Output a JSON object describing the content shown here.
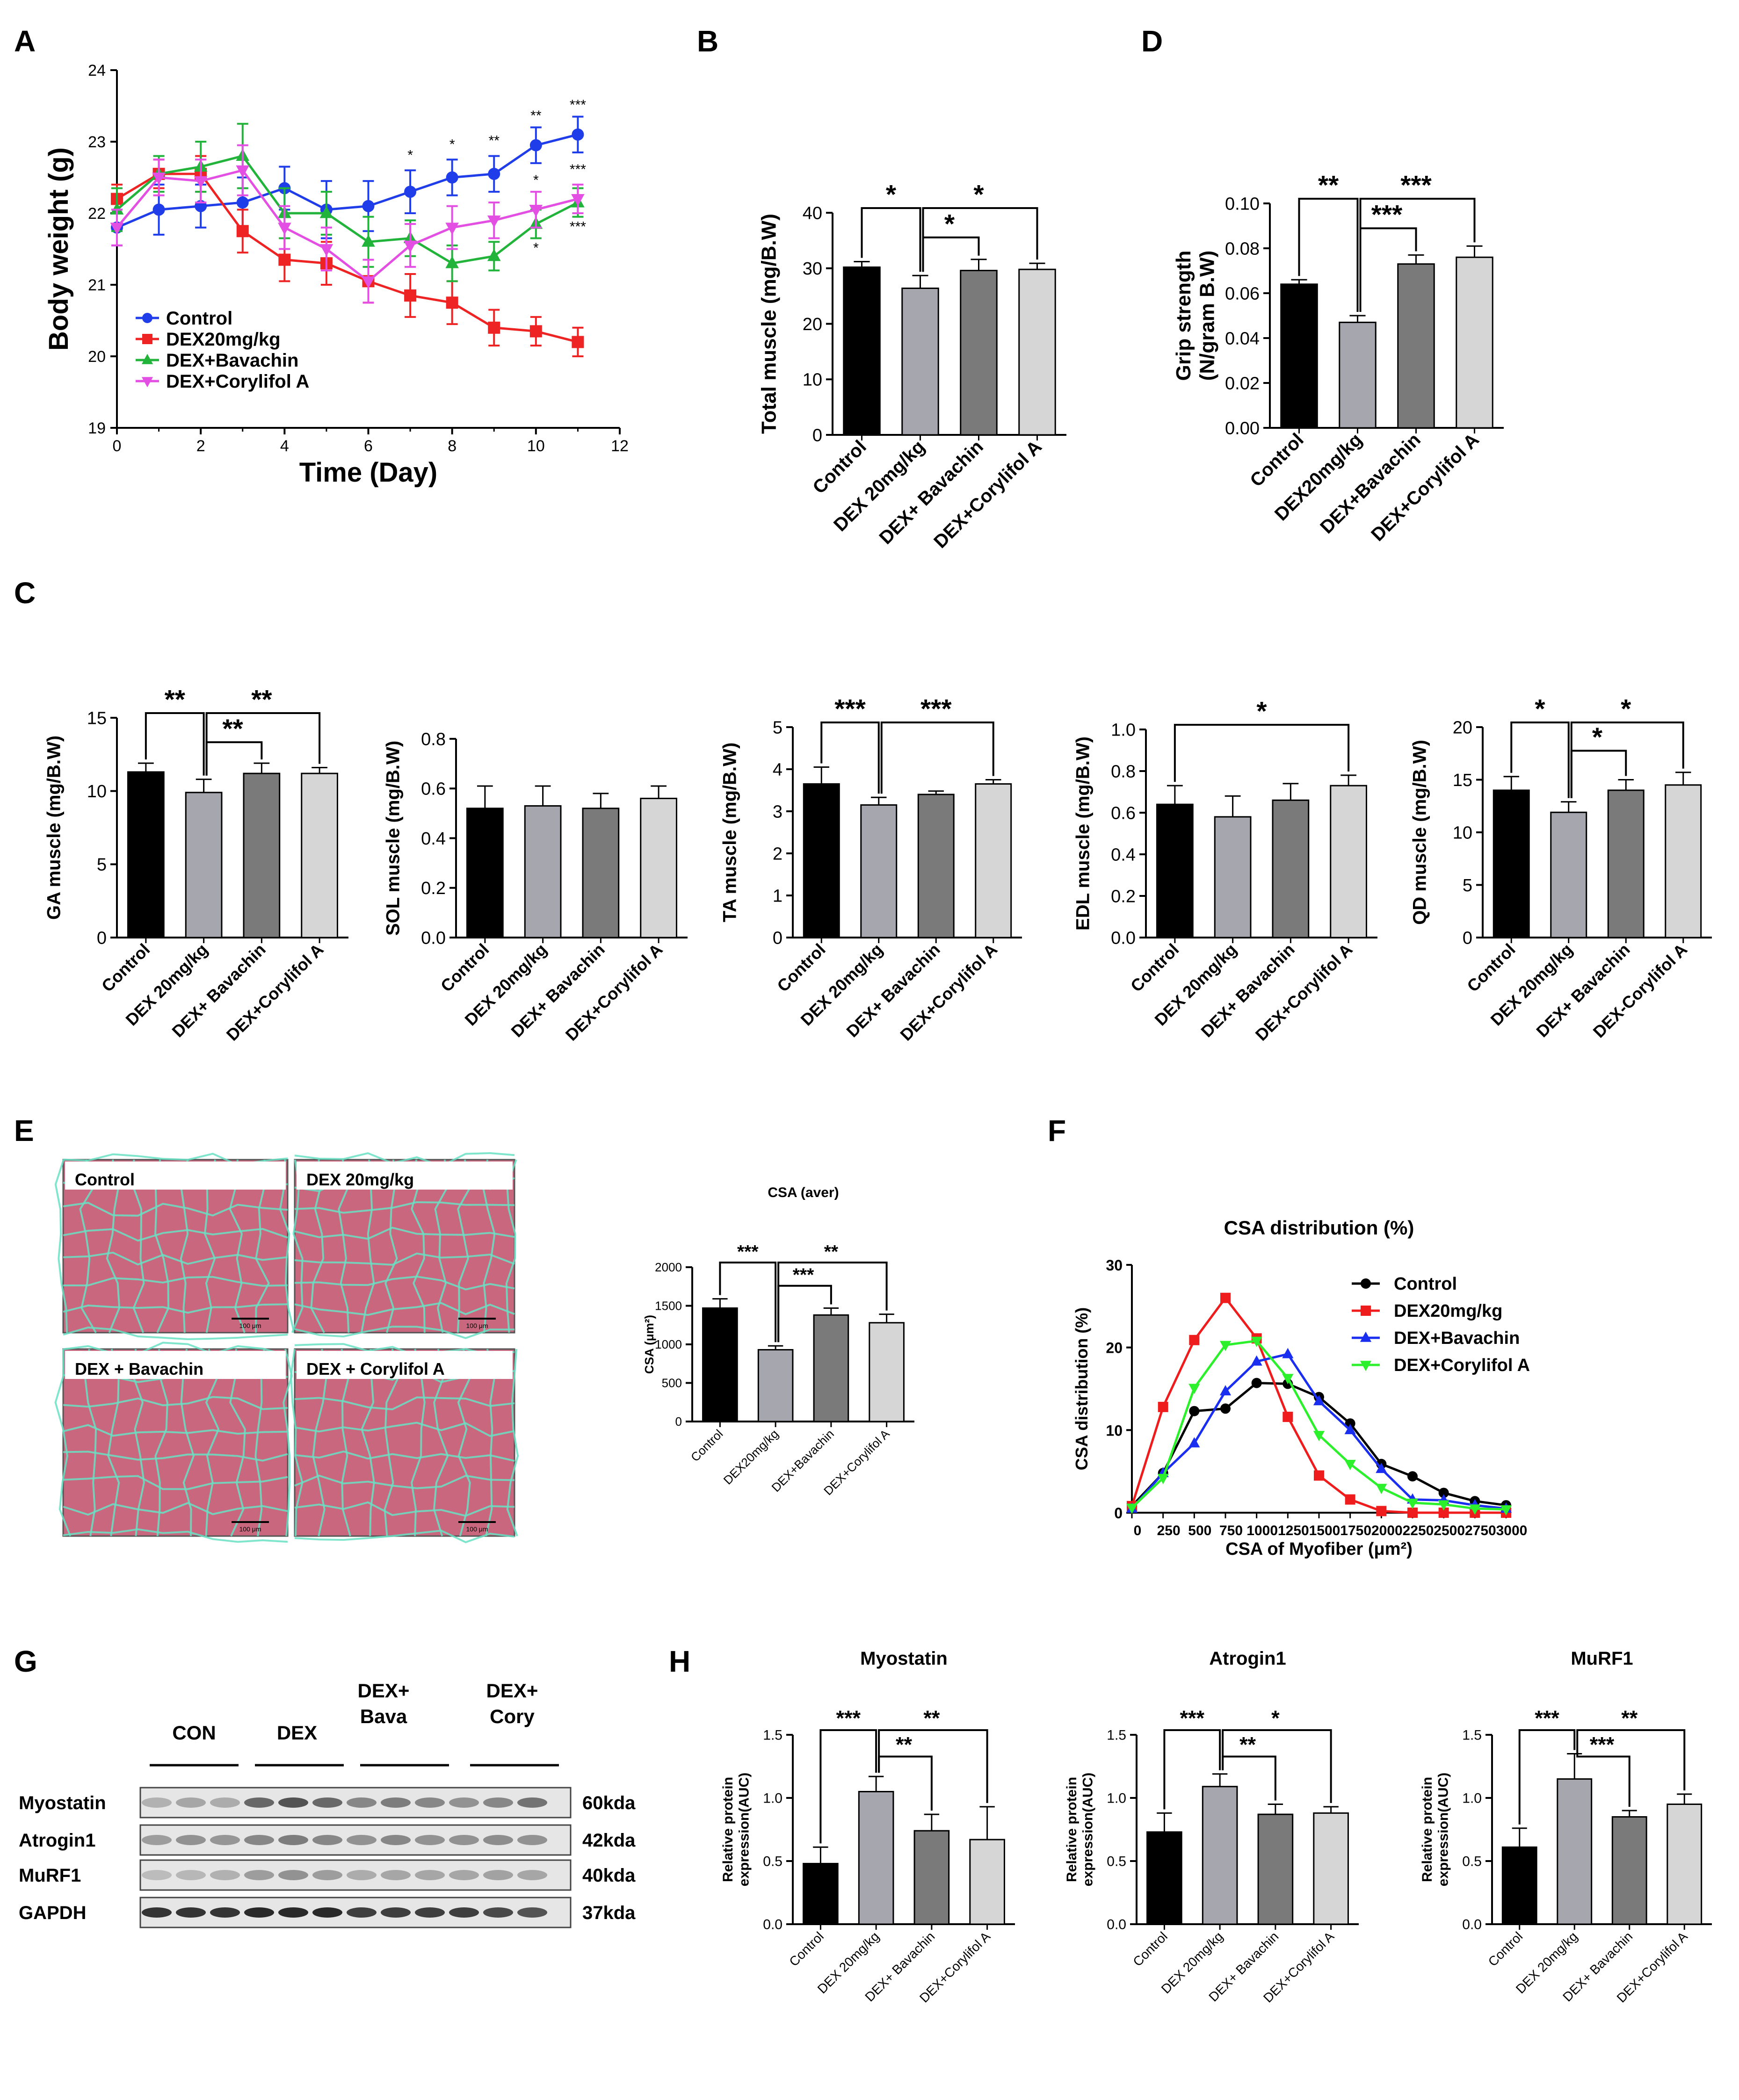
{
  "panel_letters": [
    "A",
    "B",
    "D",
    "C",
    "E",
    "F",
    "G",
    "H"
  ],
  "colors": {
    "black": "#000000",
    "grey1": "#a6a6ae",
    "grey2": "#7a7a7a",
    "grey3": "#d6d6d6",
    "control": "#1f3de8",
    "dex": "#ee2424",
    "bavachin": "#22b33a",
    "corylifol": "#e34ee3",
    "csa_control": "#000000",
    "csa_dex": "#ee1c1c",
    "csa_bava": "#1a2ef0",
    "csa_cory": "#2cf02c",
    "tissue": "#c8677e",
    "membrane": "#69e0c3"
  },
  "chart_data": [
    {
      "id": "A",
      "type": "line",
      "ylabel": "Body weight (g)",
      "xlabel": "Time (Day)",
      "xlim": [
        0,
        12
      ],
      "ylim": [
        19,
        24
      ],
      "xticks": [
        "0",
        "2",
        "4",
        "6",
        "8",
        "10",
        "12"
      ],
      "yticks": [
        "19",
        "20",
        "21",
        "22",
        "23",
        "24"
      ],
      "x": [
        0,
        1,
        2,
        3,
        4,
        5,
        6,
        7,
        8,
        9,
        10,
        11
      ],
      "series": [
        {
          "name": "Control",
          "color": "#1f3de8",
          "marker": "circle",
          "values": [
            21.8,
            22.05,
            22.1,
            22.15,
            22.35,
            22.05,
            22.1,
            22.3,
            22.5,
            22.55,
            22.95,
            23.1
          ],
          "err": [
            0.25,
            0.35,
            0.3,
            0.35,
            0.3,
            0.4,
            0.35,
            0.3,
            0.25,
            0.25,
            0.25,
            0.25
          ]
        },
        {
          "name": "DEX20mg/kg",
          "color": "#ee2424",
          "marker": "square",
          "values": [
            22.2,
            22.55,
            22.55,
            21.75,
            21.35,
            21.3,
            21.05,
            20.85,
            20.75,
            20.4,
            20.35,
            20.2
          ],
          "err": [
            0.2,
            0.2,
            0.25,
            0.3,
            0.3,
            0.3,
            0.3,
            0.3,
            0.3,
            0.25,
            0.2,
            0.2
          ]
        },
        {
          "name": "DEX+Bavachin",
          "color": "#22b33a",
          "marker": "triangle",
          "values": [
            22.05,
            22.55,
            22.65,
            22.8,
            22.0,
            22.0,
            21.6,
            21.65,
            21.3,
            21.4,
            21.85,
            22.15
          ],
          "err": [
            0.3,
            0.25,
            0.35,
            0.45,
            0.35,
            0.3,
            0.35,
            0.25,
            0.25,
            0.2,
            0.2,
            0.2
          ]
        },
        {
          "name": "DEX+Corylifol A",
          "color": "#e34ee3",
          "marker": "triangle-down",
          "values": [
            21.8,
            22.5,
            22.45,
            22.6,
            21.8,
            21.5,
            21.05,
            21.55,
            21.8,
            21.9,
            22.05,
            22.2
          ],
          "err": [
            0.25,
            0.25,
            0.3,
            0.35,
            0.3,
            0.3,
            0.3,
            0.3,
            0.3,
            0.25,
            0.25,
            0.2
          ]
        }
      ],
      "annotations": [
        {
          "x": 7,
          "y": 22.75,
          "text": "*"
        },
        {
          "x": 8,
          "y": 22.9,
          "text": "*"
        },
        {
          "x": 9,
          "y": 22.95,
          "text": "**"
        },
        {
          "x": 10,
          "y": 23.3,
          "text": "**"
        },
        {
          "x": 11,
          "y": 23.45,
          "text": "***"
        },
        {
          "x": 10,
          "y": 22.4,
          "text": "*"
        },
        {
          "x": 11,
          "y": 22.55,
          "text": "***"
        },
        {
          "x": 10,
          "y": 21.45,
          "text": "*"
        },
        {
          "x": 11,
          "y": 21.75,
          "text": "***"
        }
      ]
    },
    {
      "id": "B",
      "type": "bar",
      "ylabel": "Total muscle (mg/B.W)",
      "categories": [
        "Control",
        "DEX 20mg/kg",
        "DEX+ Bavachin",
        "DEX+Corylifol A"
      ],
      "values": [
        30.2,
        26.4,
        29.6,
        29.8
      ],
      "err": [
        1.0,
        2.3,
        2.0,
        1.1
      ],
      "ylim": [
        0,
        40
      ],
      "yticks": [
        "0",
        "10",
        "20",
        "30",
        "40"
      ],
      "brackets": [
        {
          "from": 0,
          "to": 1,
          "text": "*"
        },
        {
          "from": 1,
          "to": 3,
          "text": "*"
        },
        {
          "from": 1,
          "to": 2,
          "text": "*"
        }
      ]
    },
    {
      "id": "D",
      "type": "bar",
      "ylabel": "Grip strength",
      "ylabel2": "(N/gram B.W)",
      "categories": [
        "Control",
        "DEX20mg/kg",
        "DEX+Bavachin",
        "DEX+Corylifol A"
      ],
      "values": [
        0.064,
        0.047,
        0.073,
        0.076
      ],
      "err": [
        0.002,
        0.003,
        0.004,
        0.005
      ],
      "ylim": [
        0,
        0.1
      ],
      "yticks": [
        "0.00",
        "0.02",
        "0.04",
        "0.06",
        "0.08",
        "0.10"
      ],
      "brackets": [
        {
          "from": 0,
          "to": 1,
          "text": "**"
        },
        {
          "from": 1,
          "to": 3,
          "text": "***"
        },
        {
          "from": 1,
          "to": 2,
          "text": "***"
        }
      ]
    },
    {
      "id": "C1",
      "type": "bar",
      "ylabel": "GA muscle (mg/B.W)",
      "categories": [
        "Control",
        "DEX 20mg/kg",
        "DEX+ Bavachin",
        "DEX+Corylifol A"
      ],
      "values": [
        11.3,
        9.9,
        11.2,
        11.2
      ],
      "err": [
        0.6,
        0.9,
        0.7,
        0.4
      ],
      "ylim": [
        0,
        15
      ],
      "yticks": [
        "0",
        "5",
        "10",
        "15"
      ],
      "brackets": [
        {
          "from": 0,
          "to": 1,
          "text": "**"
        },
        {
          "from": 1,
          "to": 3,
          "text": "**"
        },
        {
          "from": 1,
          "to": 2,
          "text": "**"
        }
      ]
    },
    {
      "id": "C2",
      "type": "bar",
      "ylabel": "SOL muscle (mg/B.W)",
      "categories": [
        "Control",
        "DEX 20mg/kg",
        "DEX+ Bavachin",
        "DEX+Corylifol A"
      ],
      "values": [
        0.52,
        0.53,
        0.52,
        0.56
      ],
      "err": [
        0.09,
        0.08,
        0.06,
        0.05
      ],
      "ylim": [
        0,
        0.8
      ],
      "yticks": [
        "0.0",
        "0.2",
        "0.4",
        "0.6",
        "0.8"
      ],
      "brackets": []
    },
    {
      "id": "C3",
      "type": "bar",
      "ylabel": "TA muscle (mg/B.W)",
      "categories": [
        "Control",
        "DEX 20mg/kg",
        "DEX+ Bavachin",
        "DEX+Corylifol A"
      ],
      "values": [
        3.65,
        3.15,
        3.4,
        3.65
      ],
      "err": [
        0.4,
        0.18,
        0.08,
        0.1
      ],
      "ylim": [
        0,
        5
      ],
      "yticks": [
        "0",
        "1",
        "2",
        "3",
        "4",
        "5"
      ],
      "brackets": [
        {
          "from": 0,
          "to": 1,
          "text": "***"
        },
        {
          "from": 1,
          "to": 3,
          "text": "***"
        }
      ]
    },
    {
      "id": "C4",
      "type": "bar",
      "ylabel": "EDL muscle (mg/B.W)",
      "categories": [
        "Control",
        "DEX 20mg/kg",
        "DEX+ Bavachin",
        "DEX+Corylifol A"
      ],
      "values": [
        0.64,
        0.58,
        0.66,
        0.73
      ],
      "err": [
        0.09,
        0.1,
        0.08,
        0.05
      ],
      "ylim": [
        0,
        1.0
      ],
      "yticks": [
        "0.0",
        "0.2",
        "0.4",
        "0.6",
        "0.8",
        "1.0"
      ],
      "brackets": [
        {
          "from": 0,
          "to": 3,
          "text": "*"
        }
      ]
    },
    {
      "id": "C5",
      "type": "bar",
      "ylabel": "QD muscle (mg/B.W)",
      "categories": [
        "Control",
        "DEX 20mg/kg",
        "DEX+ Bavachin",
        "DEX-Corylifol A"
      ],
      "values": [
        14.0,
        11.9,
        14.0,
        14.5
      ],
      "err": [
        1.3,
        1.0,
        1.0,
        1.2
      ],
      "ylim": [
        0,
        20
      ],
      "yticks": [
        "0",
        "5",
        "10",
        "15",
        "20"
      ],
      "brackets": [
        {
          "from": 0,
          "to": 1,
          "text": "*"
        },
        {
          "from": 1,
          "to": 3,
          "text": "*"
        },
        {
          "from": 1,
          "to": 2,
          "text": "*"
        }
      ]
    },
    {
      "id": "E",
      "type": "bar",
      "title": "CSA (aver)",
      "ylabel": "CSA (μm²)",
      "categories": [
        "Control",
        "DEX20mg/kg",
        "DEX+Bavachin",
        "DEX+Corylifol A"
      ],
      "values": [
        1470,
        930,
        1380,
        1280
      ],
      "err": [
        120,
        50,
        90,
        110
      ],
      "ylim": [
        0,
        2000
      ],
      "yticks": [
        "0",
        "500",
        "1000",
        "1500",
        "2000"
      ],
      "brackets": [
        {
          "from": 0,
          "to": 1,
          "text": "***"
        },
        {
          "from": 1,
          "to": 3,
          "text": "**"
        },
        {
          "from": 1,
          "to": 2,
          "text": "***"
        }
      ]
    },
    {
      "id": "F",
      "type": "line",
      "title": "CSA distribution  (%)",
      "ylabel": "CSA distribution   (%)",
      "xlabel": "CSA of Myofiber  (μm²)",
      "x": [
        0,
        250,
        500,
        750,
        1000,
        1250,
        1500,
        1750,
        2000,
        2250,
        2500,
        2750,
        3000
      ],
      "xticks": [
        "0",
        "250",
        "500",
        "750",
        "1000",
        "1250",
        "1500",
        "1750",
        "2000",
        "2250",
        "2500",
        "2750",
        "3000"
      ],
      "ylim": [
        0,
        30
      ],
      "yticks": [
        "0",
        "10",
        "20",
        "30"
      ],
      "series": [
        {
          "name": "Control",
          "color": "#000000",
          "marker": "circle",
          "values": [
            0.8,
            4.8,
            12.3,
            12.6,
            15.7,
            15.6,
            14.0,
            10.8,
            5.9,
            4.4,
            2.4,
            1.4,
            0.9
          ]
        },
        {
          "name": "DEX20mg/kg",
          "color": "#ee1c1c",
          "marker": "square",
          "values": [
            0.8,
            12.8,
            20.9,
            26.0,
            21.1,
            11.6,
            4.5,
            1.6,
            0.2,
            0.0,
            0.0,
            0.0,
            0.0
          ]
        },
        {
          "name": "DEX+Bavachin",
          "color": "#1a2ef0",
          "marker": "triangle",
          "values": [
            0.5,
            4.8,
            8.4,
            14.7,
            18.3,
            19.2,
            13.5,
            10.0,
            5.3,
            1.6,
            1.5,
            0.9,
            0.5
          ]
        },
        {
          "name": "DEX+Corylifol A",
          "color": "#2cf02c",
          "marker": "triangle-down",
          "values": [
            0.6,
            4.2,
            15.1,
            20.3,
            20.8,
            16.3,
            9.4,
            5.9,
            3.0,
            1.2,
            1.0,
            0.5,
            0.4
          ]
        }
      ]
    },
    {
      "id": "H1",
      "type": "bar",
      "title": "Myostatin",
      "ylabel": "Relative protein",
      "ylabel2": "expression(AUC)",
      "categories": [
        "Control",
        "DEX 20mg/kg",
        "DEX+ Bavachin",
        "DEX+Corylifol A"
      ],
      "values": [
        0.48,
        1.05,
        0.74,
        0.67
      ],
      "err": [
        0.13,
        0.12,
        0.13,
        0.26
      ],
      "ylim": [
        0,
        1.5
      ],
      "yticks": [
        "0.0",
        "0.5",
        "1.0",
        "1.5"
      ],
      "brackets": [
        {
          "from": 0,
          "to": 1,
          "text": "***"
        },
        {
          "from": 1,
          "to": 3,
          "text": "**"
        },
        {
          "from": 1,
          "to": 2,
          "text": "**"
        }
      ]
    },
    {
      "id": "H2",
      "type": "bar",
      "title": "Atrogin1",
      "ylabel": "Relative protein",
      "ylabel2": "expression(AUC)",
      "categories": [
        "Control",
        "DEX 20mg/kg",
        "DEX+ Bavachin",
        "DEX+Corylifol A"
      ],
      "values": [
        0.73,
        1.09,
        0.87,
        0.88
      ],
      "err": [
        0.15,
        0.1,
        0.08,
        0.05
      ],
      "ylim": [
        0,
        1.5
      ],
      "yticks": [
        "0.0",
        "0.5",
        "1.0",
        "1.5"
      ],
      "brackets": [
        {
          "from": 0,
          "to": 1,
          "text": "***"
        },
        {
          "from": 1,
          "to": 3,
          "text": "*"
        },
        {
          "from": 1,
          "to": 2,
          "text": "**"
        }
      ]
    },
    {
      "id": "H3",
      "type": "bar",
      "title": "MuRF1",
      "ylabel": "Relative protein",
      "ylabel2": "expression(AUC)",
      "categories": [
        "Control",
        "DEX 20mg/kg",
        "DEX+ Bavachin",
        "DEX+Corylifol A"
      ],
      "values": [
        0.61,
        1.15,
        0.85,
        0.95
      ],
      "err": [
        0.15,
        0.2,
        0.05,
        0.08
      ],
      "ylim": [
        0,
        1.5
      ],
      "yticks": [
        "0.0",
        "0.5",
        "1.0",
        "1.5"
      ],
      "brackets": [
        {
          "from": 0,
          "to": 1,
          "text": "***"
        },
        {
          "from": 1,
          "to": 3,
          "text": "**"
        },
        {
          "from": 1,
          "to": 2,
          "text": "***"
        }
      ]
    }
  ],
  "histology": {
    "images": [
      "Control",
      "DEX 20mg/kg",
      "DEX + Bavachin",
      "DEX + Corylifol A"
    ],
    "scale_bar": "100 μm"
  },
  "western_blot": {
    "groups": [
      "CON",
      "DEX",
      "DEX+\nBava",
      "DEX+\nCory"
    ],
    "rows": [
      {
        "label": "Myostatin",
        "size": "60kda"
      },
      {
        "label": "Atrogin1",
        "size": "42kda"
      },
      {
        "label": "MuRF1",
        "size": "40kda"
      },
      {
        "label": "GAPDH",
        "size": "37kda"
      }
    ]
  }
}
